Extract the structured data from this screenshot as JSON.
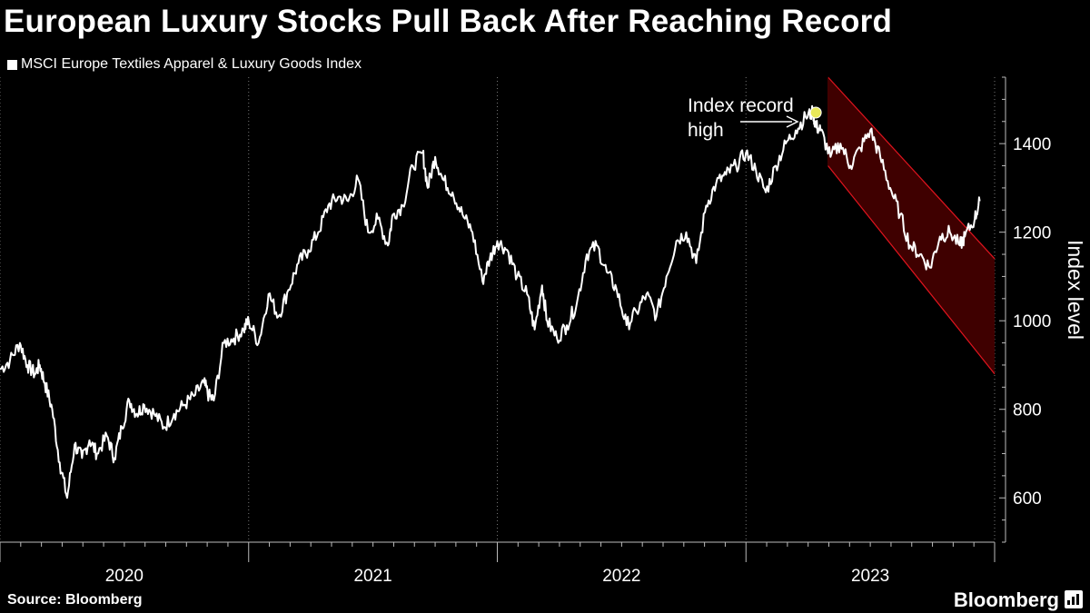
{
  "header": {
    "title": "European Luxury Stocks Pull Back After Reaching Record"
  },
  "footer": {
    "source": "Source: Bloomberg",
    "brand": "Bloomberg"
  },
  "colors": {
    "background": "#000000",
    "line": "#ffffff",
    "channel_fill": "#4a0000",
    "channel_edge": "#e0141e",
    "marker": "#e8e85a"
  },
  "chart_data": {
    "type": "line",
    "title": "European Luxury Stocks Pull Back After Reaching Record",
    "xlabel": "",
    "ylabel": "Index level",
    "xlim": [
      2020.0,
      2024.0
    ],
    "ylim": [
      500,
      1550
    ],
    "y_ticks": [
      600,
      800,
      1000,
      1200,
      1400
    ],
    "x_tick_labels": [
      "2020",
      "2021",
      "2022",
      "2023"
    ],
    "grid": "vertical dotted at year boundaries",
    "series": [
      {
        "name": "MSCI Europe Textiles Apparel & Luxury Goods Index",
        "x": [
          2020.0,
          2020.04,
          2020.08,
          2020.11,
          2020.14,
          2020.16,
          2020.18,
          2020.21,
          2020.24,
          2020.27,
          2020.3,
          2020.33,
          2020.36,
          2020.39,
          2020.43,
          2020.46,
          2020.49,
          2020.52,
          2020.55,
          2020.58,
          2020.62,
          2020.66,
          2020.7,
          2020.74,
          2020.78,
          2020.82,
          2020.84,
          2020.86,
          2020.9,
          2020.94,
          2020.98,
          2021.0,
          2021.04,
          2021.08,
          2021.12,
          2021.16,
          2021.2,
          2021.24,
          2021.28,
          2021.32,
          2021.36,
          2021.4,
          2021.44,
          2021.48,
          2021.52,
          2021.56,
          2021.58,
          2021.62,
          2021.66,
          2021.7,
          2021.72,
          2021.75,
          2021.78,
          2021.82,
          2021.86,
          2021.9,
          2021.94,
          2021.97,
          2022.0,
          2022.04,
          2022.08,
          2022.12,
          2022.15,
          2022.18,
          2022.2,
          2022.24,
          2022.28,
          2022.32,
          2022.36,
          2022.4,
          2022.44,
          2022.48,
          2022.52,
          2022.56,
          2022.6,
          2022.64,
          2022.68,
          2022.72,
          2022.76,
          2022.8,
          2022.84,
          2022.88,
          2022.92,
          2022.96,
          2023.0,
          2023.04,
          2023.08,
          2023.12,
          2023.16,
          2023.2,
          2023.24,
          2023.27,
          2023.28,
          2023.3,
          2023.34,
          2023.38,
          2023.42,
          2023.46,
          2023.5,
          2023.54,
          2023.58,
          2023.62,
          2023.66,
          2023.7,
          2023.74,
          2023.78,
          2023.82,
          2023.86,
          2023.88,
          2023.92,
          2023.94
        ],
        "values": [
          890,
          910,
          950,
          900,
          880,
          900,
          860,
          800,
          680,
          600,
          720,
          690,
          730,
          700,
          740,
          690,
          760,
          820,
          790,
          810,
          790,
          760,
          790,
          810,
          830,
          860,
          830,
          820,
          950,
          960,
          980,
          1000,
          950,
          1060,
          1010,
          1070,
          1130,
          1160,
          1200,
          1260,
          1280,
          1270,
          1320,
          1200,
          1230,
          1170,
          1240,
          1260,
          1350,
          1380,
          1300,
          1370,
          1320,
          1290,
          1240,
          1200,
          1090,
          1140,
          1180,
          1160,
          1100,
          1060,
          980,
          1080,
          1000,
          960,
          990,
          1040,
          1150,
          1170,
          1110,
          1070,
          990,
          1020,
          1060,
          1010,
          1100,
          1180,
          1200,
          1130,
          1260,
          1310,
          1330,
          1350,
          1380,
          1340,
          1290,
          1350,
          1400,
          1430,
          1460,
          1470,
          1440,
          1430,
          1370,
          1400,
          1350,
          1390,
          1430,
          1370,
          1300,
          1240,
          1170,
          1150,
          1120,
          1190,
          1200,
          1170,
          1190,
          1230,
          1270
        ]
      }
    ],
    "channel": {
      "x": [
        2023.33,
        2024.0
      ],
      "upper": [
        1550,
        1140
      ],
      "lower": [
        1350,
        880
      ]
    },
    "annotations": [
      {
        "text": "Index record high",
        "x": 2023.27,
        "y": 1470
      }
    ]
  }
}
